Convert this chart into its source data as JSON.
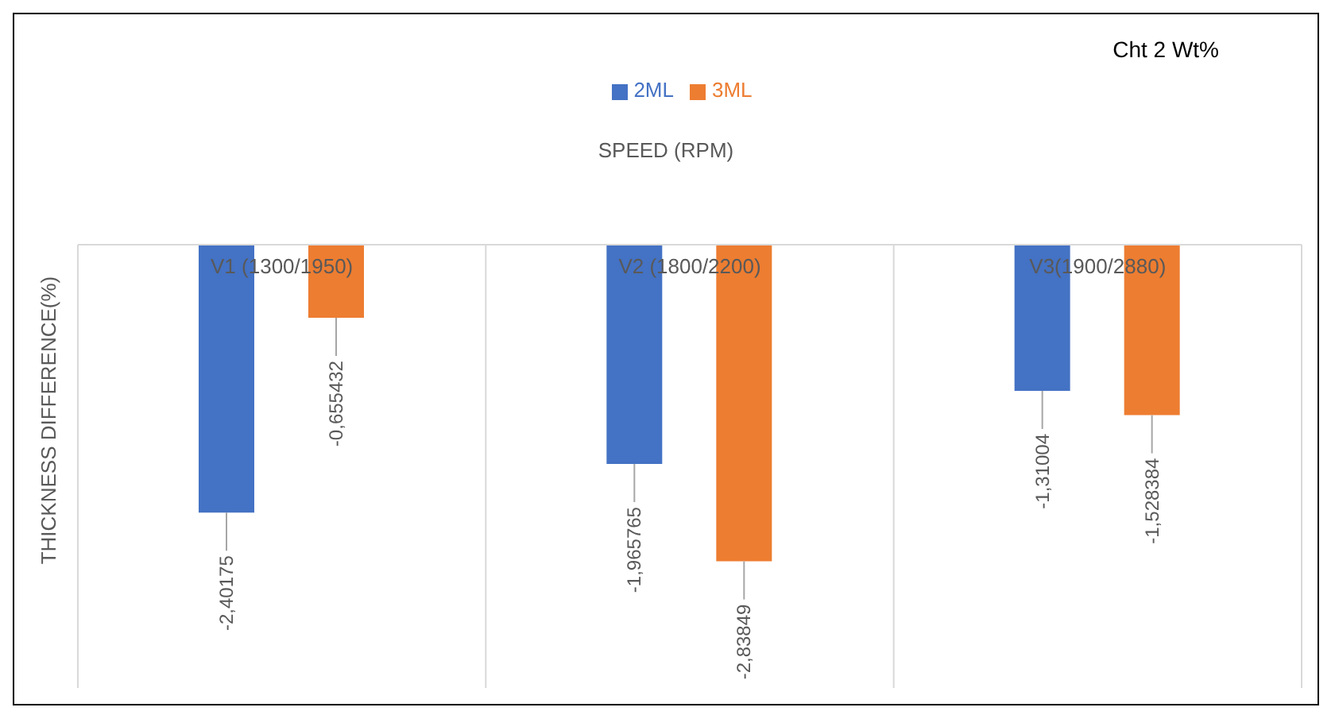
{
  "chart_data": {
    "type": "bar",
    "title": "Cht 2 Wt%",
    "xlabel": "SPEED (RPM)",
    "ylabel": "THICKNESS DIFFERENCE(%)",
    "categories": [
      "V1 (1300/1950)",
      "V2 (1800/2200)",
      "V3(1900/2880)"
    ],
    "series": [
      {
        "name": "2ML",
        "color": "#4472c4",
        "values": [
          -2.40175,
          -1.965765,
          -1.31004
        ],
        "value_labels": [
          "-2,40175",
          "-1,965765",
          "-1,31004"
        ]
      },
      {
        "name": "3ML",
        "color": "#ed7d31",
        "values": [
          -0.655432,
          -2.83849,
          -1.528384
        ],
        "value_labels": [
          "-0,655432",
          "-2,83849",
          "-1,528384"
        ]
      }
    ],
    "legend": "top",
    "grid": "x",
    "tick_labels": "x"
  }
}
